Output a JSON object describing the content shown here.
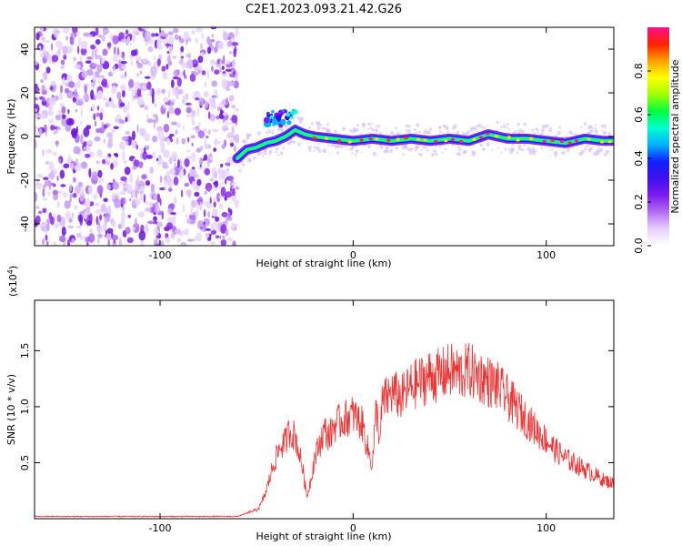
{
  "chart_data": [
    {
      "type": "heatmap",
      "title": "C2E1.2023.093.21.42.G26",
      "xlabel": "Height of straight line (km)",
      "ylabel": "Frequency (Hz)",
      "xlim": [
        -165,
        135
      ],
      "ylim": [
        -50,
        50
      ],
      "x_ticks": [
        -100,
        0,
        100
      ],
      "y_ticks": [
        -40,
        -20,
        0,
        20,
        40
      ],
      "colorbar": {
        "label": "Normalized spectral amplitude",
        "range": [
          0,
          1
        ],
        "ticks": [
          0.0,
          0.2,
          0.4,
          0.6,
          0.8
        ],
        "colormap": [
          "#ffffff",
          "#e6d0fb",
          "#b46ef5",
          "#7c1cee",
          "#4010ee",
          "#1020ff",
          "#00b0ff",
          "#00ffd0",
          "#00ff40",
          "#a0ff00",
          "#ffff00",
          "#ffa000",
          "#ff2000",
          "#ff1090"
        ]
      },
      "noise_region": {
        "x": [
          -165,
          -60
        ],
        "y": [
          -50,
          50
        ]
      },
      "ridge": [
        {
          "x": -60,
          "y": -10
        },
        {
          "x": -55,
          "y": -6
        },
        {
          "x": -50,
          "y": -5
        },
        {
          "x": -45,
          "y": -3
        },
        {
          "x": -40,
          "y": -2
        },
        {
          "x": -35,
          "y": 0
        },
        {
          "x": -30,
          "y": 3
        },
        {
          "x": -25,
          "y": 1
        },
        {
          "x": -20,
          "y": 0
        },
        {
          "x": -10,
          "y": -1
        },
        {
          "x": 0,
          "y": -2
        },
        {
          "x": 10,
          "y": -1
        },
        {
          "x": 20,
          "y": -2
        },
        {
          "x": 30,
          "y": -1
        },
        {
          "x": 40,
          "y": -2
        },
        {
          "x": 50,
          "y": -1
        },
        {
          "x": 60,
          "y": -2
        },
        {
          "x": 70,
          "y": 1
        },
        {
          "x": 80,
          "y": -1
        },
        {
          "x": 90,
          "y": -1
        },
        {
          "x": 100,
          "y": -2
        },
        {
          "x": 110,
          "y": -3
        },
        {
          "x": 120,
          "y": -1
        },
        {
          "x": 130,
          "y": -2
        }
      ],
      "side_blob": {
        "x": [
          -45,
          -30
        ],
        "y": [
          5,
          12
        ]
      }
    },
    {
      "type": "line",
      "xlabel": "Height of straight line (km)",
      "ylabel": "SNR (10 * v/v)",
      "y_multiplier": "(x10",
      "y_multiplier_exp": "4",
      "y_multiplier_close": ")",
      "xlim": [
        -165,
        135
      ],
      "ylim": [
        0,
        1.95
      ],
      "x_ticks": [
        -100,
        0,
        100
      ],
      "y_ticks": [
        0.5,
        1.0,
        1.5
      ],
      "line_color": "#ee3333",
      "series": [
        {
          "x": [
            -165,
            -140,
            -120,
            -100,
            -80,
            -60,
            -55,
            -50,
            -48,
            -45,
            -42,
            -40,
            -38,
            -35,
            -33,
            -30,
            -28,
            -26,
            -24,
            -22,
            -20,
            -18,
            -15,
            -12,
            -10,
            -5,
            0,
            5,
            8,
            10,
            12,
            14,
            15,
            20,
            25,
            30,
            35,
            40,
            45,
            50,
            55,
            60,
            65,
            70,
            75,
            80,
            85,
            90,
            95,
            100,
            105,
            110,
            115,
            120,
            125,
            130,
            135
          ],
          "values": [
            0.02,
            0.02,
            0.02,
            0.02,
            0.02,
            0.02,
            0.05,
            0.08,
            0.12,
            0.25,
            0.45,
            0.55,
            0.65,
            0.7,
            0.8,
            0.75,
            0.6,
            0.45,
            0.2,
            0.35,
            0.55,
            0.65,
            0.8,
            0.75,
            0.85,
            0.9,
            0.95,
            0.85,
            0.6,
            0.5,
            1.0,
            0.7,
            1.05,
            1.15,
            1.1,
            1.2,
            1.25,
            1.3,
            1.3,
            1.35,
            1.32,
            1.35,
            1.3,
            1.25,
            1.2,
            1.1,
            1.0,
            0.9,
            0.8,
            0.72,
            0.62,
            0.55,
            0.5,
            0.45,
            0.4,
            0.35,
            0.32
          ]
        }
      ]
    }
  ]
}
